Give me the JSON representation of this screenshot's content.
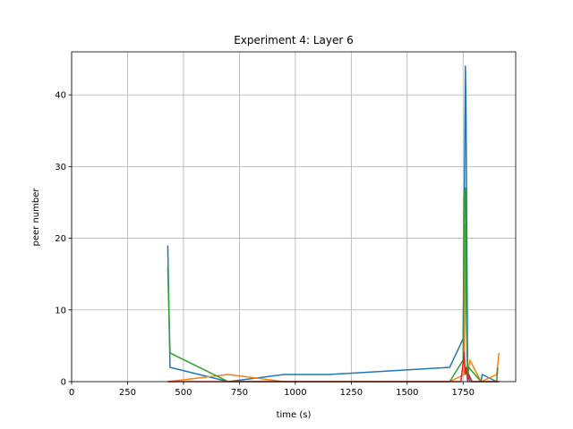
{
  "chart_data": {
    "type": "line",
    "title": "Experiment 4: Layer 6",
    "xlabel": "time (s)",
    "ylabel": "peer number",
    "xlim": [
      0,
      1985
    ],
    "ylim": [
      0,
      46
    ],
    "grid": true,
    "x_ticks": [
      0,
      250,
      500,
      750,
      1000,
      1250,
      1500,
      1750
    ],
    "y_ticks": [
      0,
      10,
      20,
      30,
      40
    ],
    "series": [
      {
        "color": "#1f77b4",
        "x": [
          430,
          440,
          700,
          950,
          1150,
          1690,
          1750,
          1755,
          1760,
          1763,
          1770,
          1775,
          1780,
          1830,
          1835,
          1900,
          1910
        ],
        "y": [
          19,
          2,
          0,
          1,
          1,
          2,
          6,
          24,
          44,
          38,
          2,
          1,
          0,
          0,
          1,
          0,
          0
        ]
      },
      {
        "color": "#ff7f0e",
        "x": [
          430,
          700,
          950,
          1690,
          1755,
          1760,
          1765,
          1770,
          1780,
          1830,
          1900,
          1910
        ],
        "y": [
          0,
          1,
          0,
          0,
          1,
          22,
          10,
          1,
          3,
          0,
          1,
          4
        ]
      },
      {
        "color": "#2ca02c",
        "x": [
          430,
          440,
          700,
          1690,
          1750,
          1755,
          1760,
          1765,
          1770,
          1775,
          1830,
          1900,
          1905
        ],
        "y": [
          16,
          4,
          0,
          0,
          3,
          26,
          27,
          8,
          1,
          2,
          0,
          0,
          2
        ]
      },
      {
        "color": "#d62728",
        "x": [
          430,
          1740,
          1755,
          1760,
          1765,
          1770,
          1775,
          1790,
          1910
        ],
        "y": [
          0,
          0,
          4,
          1,
          2,
          0,
          1,
          0,
          0
        ]
      }
    ]
  }
}
